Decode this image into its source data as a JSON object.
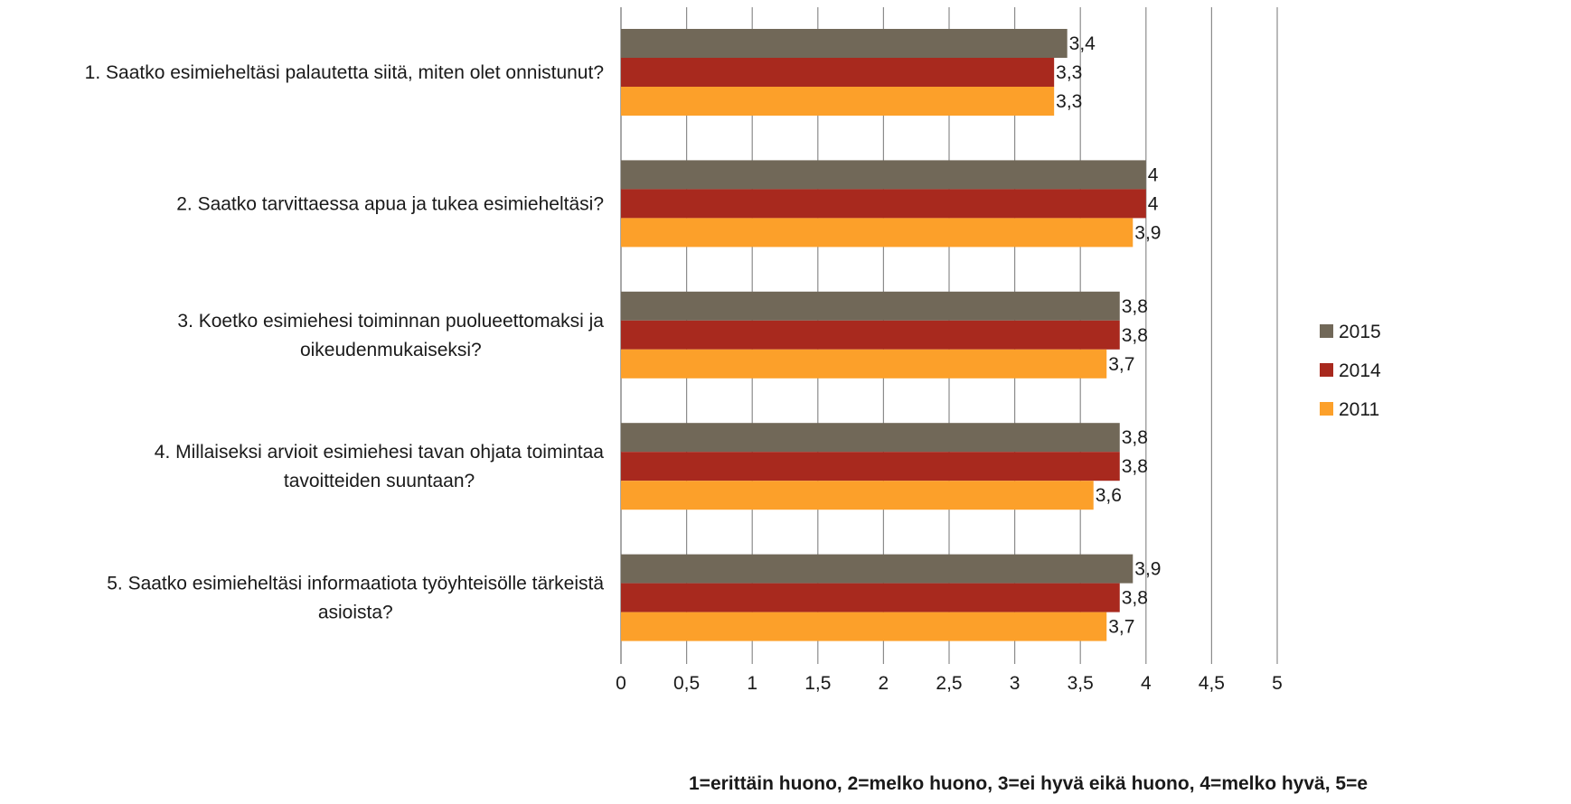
{
  "chart_data": {
    "type": "bar",
    "orientation": "horizontal",
    "categories": [
      [
        "1. Saatko esimieheltäsi palautetta siitä, miten olet onnistunut?"
      ],
      [
        "2. Saatko tarvittaessa apua ja tukea esimieheltäsi?"
      ],
      [
        "3. Koetko esimiehesi toiminnan puolueettomaksi ja",
        "oikeudenmukaiseksi?"
      ],
      [
        "4. Millaiseksi arvioit esimiehesi tavan ohjata toimintaa",
        "tavoitteiden suuntaan?"
      ],
      [
        "5. Saatko esimieheltäsi informaatiota työyhteisölle tärkeistä",
        "asioista?"
      ]
    ],
    "series": [
      {
        "name": "2015",
        "color": "#716858",
        "values": [
          3.4,
          4.0,
          3.8,
          3.8,
          3.9
        ],
        "labels": [
          "3,4",
          "4",
          "3,8",
          "3,8",
          "3,9"
        ]
      },
      {
        "name": "2014",
        "color": "#A8291E",
        "values": [
          3.3,
          4.0,
          3.8,
          3.8,
          3.8
        ],
        "labels": [
          "3,3",
          "4",
          "3,8",
          "3,8",
          "3,8"
        ]
      },
      {
        "name": "2011",
        "color": "#FCA02A",
        "values": [
          3.3,
          3.9,
          3.7,
          3.6,
          3.7
        ],
        "labels": [
          "3,3",
          "3,9",
          "3,7",
          "3,6",
          "3,7"
        ]
      }
    ],
    "xlim": [
      0,
      5
    ],
    "xticks": [
      0,
      0.5,
      1,
      1.5,
      2,
      2.5,
      3,
      3.5,
      4,
      4.5,
      5
    ],
    "xtick_labels": [
      "0",
      "0,5",
      "1",
      "1,5",
      "2",
      "2,5",
      "3",
      "3,5",
      "4",
      "4,5",
      "5"
    ],
    "xlabel": "1=erittäin huono, 2=melko huono, 3=ei hyvä eikä huono, 4=melko hyvä, 5=e",
    "grid": true,
    "gridline_color": "#8c8c8c",
    "legend": "right",
    "legend_order": [
      "2015",
      "2014",
      "2011"
    ]
  }
}
